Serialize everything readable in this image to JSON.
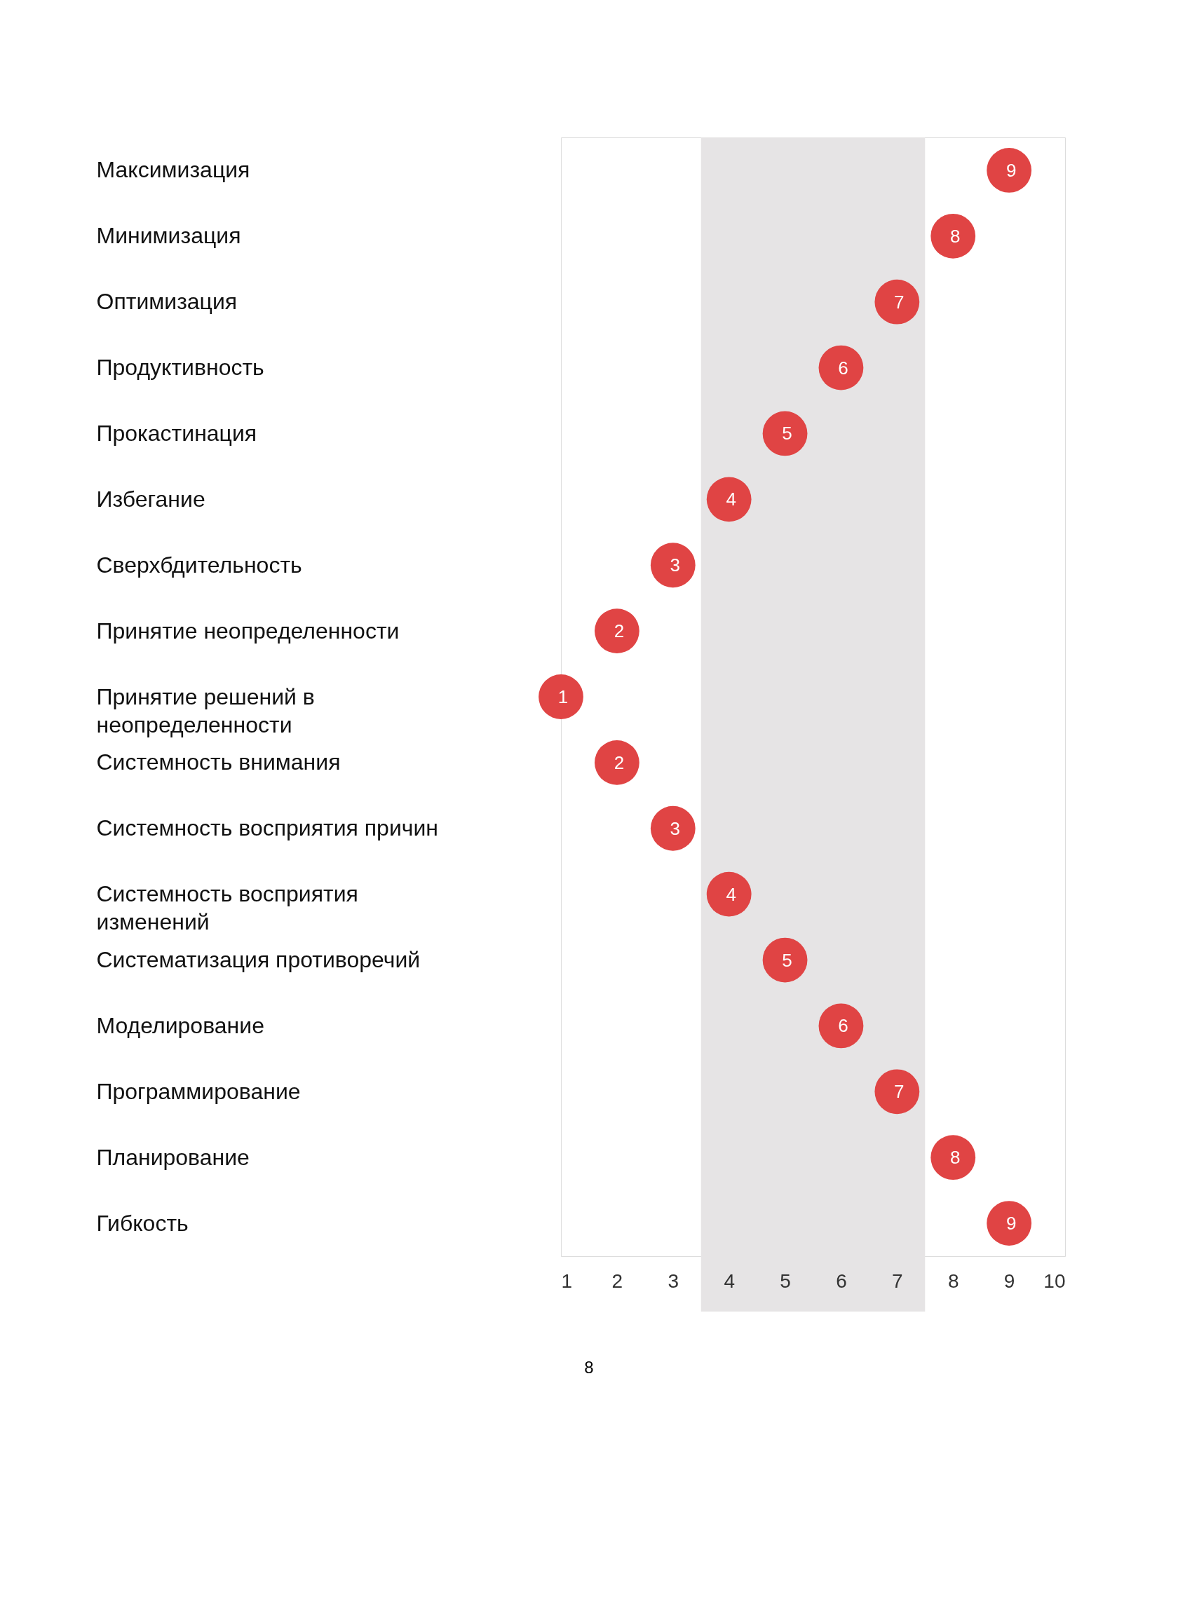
{
  "chart_data": {
    "type": "scatter",
    "orientation": "horizontal",
    "categories": [
      "Максимизация",
      "Минимизация",
      "Оптимизация",
      "Продуктивность",
      "Прокастинация",
      "Избегание",
      "Сверхбдительность",
      "Принятие неопределенности",
      "Принятие решений в неопределенности",
      "Системность внимания",
      "Системность восприятия причин",
      "Системность восприятия изменений",
      "Систематизация противоречий",
      "Моделирование",
      "Программирование",
      "Планирование",
      "Гибкость"
    ],
    "series": [
      {
        "color": "#e04444",
        "values": [
          9,
          8,
          7,
          6,
          5,
          4,
          3,
          2,
          1,
          2,
          3,
          4,
          5,
          6,
          7,
          8,
          9
        ]
      }
    ],
    "xlim": [
      1,
      10
    ],
    "xticks": [
      1,
      2,
      3,
      4,
      5,
      6,
      7,
      8,
      9,
      10
    ],
    "marker": "circle",
    "data_labels": true,
    "bands": [
      {
        "axis": "x",
        "from": 3.5,
        "to": 7.5,
        "color": "#e6e4e5"
      }
    ],
    "annotations": [
      "8"
    ]
  }
}
